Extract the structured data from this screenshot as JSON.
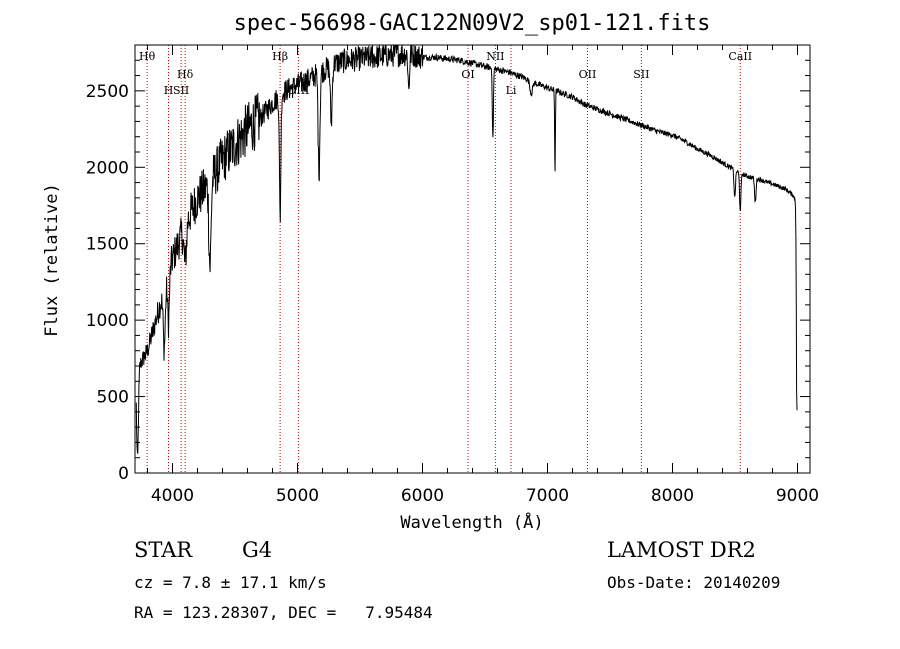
{
  "chart_data": {
    "type": "line",
    "title": "spec-56698-GAC122N09V2_sp01-121.fits",
    "xlabel": "Wavelength (Å)",
    "ylabel": "Flux (relative)",
    "xlim": [
      3700,
      9100
    ],
    "ylim": [
      0,
      2800
    ],
    "x_ticks": [
      4000,
      5000,
      6000,
      7000,
      8000,
      9000
    ],
    "x_tick_labels": [
      "4000",
      "5000",
      "6000",
      "7000",
      "8000",
      "9000"
    ],
    "y_ticks": [
      0,
      500,
      1000,
      1500,
      2000,
      2500
    ],
    "y_tick_labels": [
      "0",
      "500",
      "1000",
      "1500",
      "2000",
      "2500"
    ],
    "grid": false,
    "line_color": "#000000",
    "line_marker_color": "#cc0000",
    "continuum": {
      "x": [
        3700,
        3800,
        3900,
        4000,
        4100,
        4200,
        4300,
        4400,
        4500,
        4600,
        4700,
        4800,
        4900,
        5000,
        5100,
        5200,
        5300,
        5400,
        5500,
        5600,
        5700,
        5800,
        5900,
        6000,
        6100,
        6200,
        6300,
        6400,
        6500,
        6600,
        6700,
        6800,
        6900,
        7000,
        7100,
        7200,
        7300,
        7400,
        7500,
        7600,
        7700,
        7800,
        7900,
        8000,
        8100,
        8200,
        8300,
        8400,
        8500,
        8600,
        8700,
        8800,
        8900,
        8960,
        8990
      ],
      "y": [
        650,
        800,
        1100,
        1400,
        1620,
        1800,
        1900,
        2050,
        2150,
        2250,
        2320,
        2420,
        2500,
        2540,
        2580,
        2630,
        2680,
        2700,
        2710,
        2720,
        2730,
        2740,
        2740,
        2720,
        2720,
        2710,
        2700,
        2680,
        2660,
        2640,
        2620,
        2590,
        2550,
        2520,
        2490,
        2460,
        2410,
        2380,
        2350,
        2320,
        2290,
        2260,
        2230,
        2210,
        2170,
        2120,
        2080,
        2030,
        1980,
        1940,
        1920,
        1890,
        1860,
        1820,
        1780
      ]
    },
    "absorption_features": [
      {
        "x": 3720,
        "depth": 600,
        "width": 10
      },
      {
        "x": 3934,
        "depth": 380,
        "width": 12
      },
      {
        "x": 3968,
        "depth": 320,
        "width": 10
      },
      {
        "x": 4101,
        "depth": 250,
        "width": 14
      },
      {
        "x": 4300,
        "depth": 550,
        "width": 12
      },
      {
        "x": 4861,
        "depth": 800,
        "width": 8
      },
      {
        "x": 5172,
        "depth": 650,
        "width": 10
      },
      {
        "x": 5270,
        "depth": 380,
        "width": 10
      },
      {
        "x": 5890,
        "depth": 230,
        "width": 8
      },
      {
        "x": 6563,
        "depth": 470,
        "width": 6
      },
      {
        "x": 6870,
        "depth": 80,
        "width": 14
      },
      {
        "x": 7060,
        "depth": 560,
        "width": 4
      },
      {
        "x": 8498,
        "depth": 180,
        "width": 8
      },
      {
        "x": 8542,
        "depth": 240,
        "width": 8
      },
      {
        "x": 8662,
        "depth": 160,
        "width": 8
      },
      {
        "x": 8995,
        "depth": 1400,
        "width": 6
      }
    ],
    "line_markers": [
      {
        "label": "Hθ",
        "x": 3797,
        "row": 0
      },
      {
        "label": "H",
        "x": 3968,
        "row": 1
      },
      {
        "label": "Hδ",
        "x": 4101,
        "row": 2
      },
      {
        "label": "SII",
        "x": 4069,
        "row": 1
      },
      {
        "label": "Hβ",
        "x": 4861,
        "row": 0
      },
      {
        "label": "OIII",
        "x": 5007,
        "row": 1
      },
      {
        "label": "OI",
        "x": 6364,
        "row": 2
      },
      {
        "label": "NII",
        "x": 6583,
        "row": 0
      },
      {
        "label": "Li",
        "x": 6708,
        "row": 1
      },
      {
        "label": "OII",
        "x": 7320,
        "row": 2
      },
      {
        "label": "SII",
        "x": 7751,
        "row": 2
      },
      {
        "label": "CaII",
        "x": 8542,
        "row": 0
      }
    ]
  },
  "info": {
    "object_class": "STAR",
    "subclass": "G4",
    "survey": "LAMOST DR2",
    "cz": "cz = 7.8 ± 17.1 km/s",
    "obs_date": "Obs-Date: 20140209",
    "coords": "RA = 123.28307, DEC =   7.95484"
  }
}
